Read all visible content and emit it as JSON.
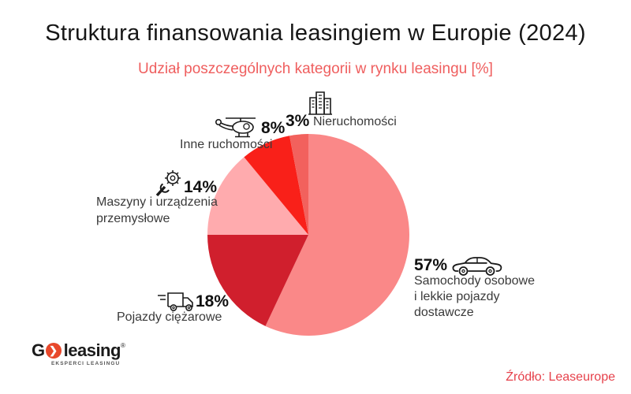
{
  "header": {
    "title": "Struktura finansowania leasingiem w Europie (2024)",
    "subtitle": "Udział poszczególnych kategorii w rynku leasingu [%]"
  },
  "chart_data": {
    "type": "pie",
    "title": "Struktura finansowania leasingiem w Europie (2024)",
    "subtitle": "Udział poszczególnych kategorii w rynku leasingu [%]",
    "unit": "%",
    "start_angle_deg": 0,
    "direction": "clockwise",
    "legend_position": "callouts-around-pie",
    "slices": [
      {
        "id": "samochody",
        "label": "Samochody osobowe i lekkie pojazdy dostawcze",
        "label_lines": [
          "Samochody osobowe",
          "i lekkie pojazdy",
          "dostawcze"
        ],
        "value": 57,
        "pct": "57%",
        "color": "#FA8888",
        "icon": "car-icon"
      },
      {
        "id": "pojazdy-ciezarowe",
        "label": "Pojazdy ciężarowe",
        "label_lines": [
          "Pojazdy ciężarowe"
        ],
        "value": 18,
        "pct": "18%",
        "color": "#D01F2D",
        "icon": "truck-icon"
      },
      {
        "id": "maszyny",
        "label": "Maszyny i urządzenia przemysłowe",
        "label_lines": [
          "Maszyny i urządzenia",
          "przemysłowe"
        ],
        "value": 14,
        "pct": "14%",
        "color": "#FFABAE",
        "icon": "gear-wrench-icon"
      },
      {
        "id": "inne-ruchomosci",
        "label": "Inne ruchomości",
        "label_lines": [
          "Inne ruchomości"
        ],
        "value": 8,
        "pct": "8%",
        "color": "#F92019",
        "icon": "helicopter-icon"
      },
      {
        "id": "nieruchomosci",
        "label": "Nieruchomości",
        "label_lines": [
          "Nieruchomości"
        ],
        "value": 3,
        "pct": "3%",
        "color": "#F2615D",
        "icon": "building-icon"
      }
    ]
  },
  "logo": {
    "g": "G",
    "o_symbol": "❯",
    "leasing": "leasing",
    "registered": "®",
    "tagline": "EKSPERCI LEASINGU",
    "accent_color": "#E8482B"
  },
  "footer": {
    "source": "Źródło: Leaseurope"
  }
}
